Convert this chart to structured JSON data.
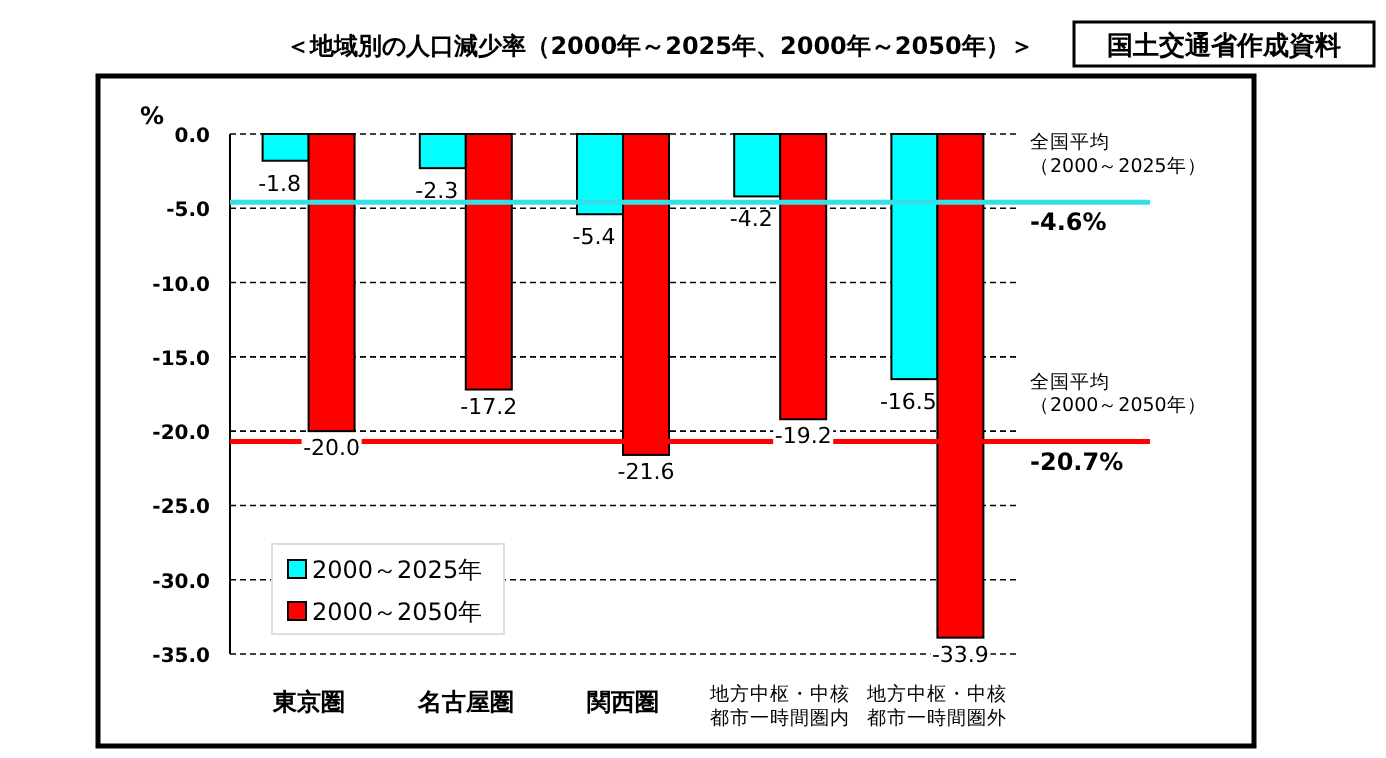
{
  "chart_data": {
    "type": "bar",
    "title": "＜地域別の人口減少率（2000年～2025年、2000年～2050年）＞",
    "annotations": [
      "国土交通省作成資料",
      {
        "text": "-4.6%",
        "y": -4.6
      },
      {
        "text": "-20.7%",
        "y": -20.7
      }
    ],
    "ylabel": "%",
    "categories": [
      "東京圏",
      "名古屋圏",
      "関西圏",
      "地方中枢・中核都市一時間圏内",
      "地方中枢・中核都市一時間圏外"
    ],
    "series": [
      {
        "name": "2000～2025年",
        "color": "#00ffff",
        "values": [
          -1.8,
          -2.3,
          -5.4,
          -4.2,
          -16.5
        ],
        "value_labels": [
          "-1.8",
          "-2.3",
          "-5.4",
          "-4.2",
          "-16.5"
        ]
      },
      {
        "name": "2000～2050年",
        "color": "#ff0000",
        "values": [
          -20.0,
          -17.2,
          -21.6,
          -19.2,
          -33.9
        ],
        "value_labels": [
          "-20.0",
          "-17.2",
          "-21.6",
          "-19.2",
          "-33.9"
        ]
      }
    ],
    "ylim": [
      -35,
      0
    ],
    "yticks": [
      {
        "value": 0,
        "label": "0.0"
      },
      {
        "value": -5,
        "label": "-5.0"
      },
      {
        "value": -10,
        "label": "-10.0"
      },
      {
        "value": -15,
        "label": "-15.0"
      },
      {
        "value": -20,
        "label": "-20.0"
      },
      {
        "value": -25,
        "label": "-25.0"
      },
      {
        "value": -30,
        "label": "-30.0"
      },
      {
        "value": -35,
        "label": "-35.0"
      }
    ],
    "grid": "y",
    "legend": "bottom left",
    "ref_lines": [
      {
        "axis": "y",
        "value": -4.6,
        "label": "全国平均（2000～2025年）",
        "color": "#33e0e6"
      },
      {
        "axis": "y",
        "value": -20.7,
        "label": "全国平均（2000～2050年）",
        "color": "#ff0000"
      }
    ]
  }
}
